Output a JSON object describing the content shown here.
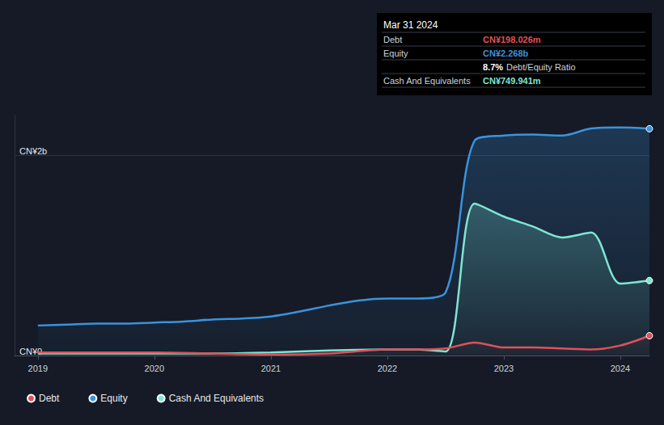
{
  "chart_data": {
    "type": "line",
    "xlim": [
      2018.8,
      2024.25
    ],
    "xticks": [
      2019,
      2020,
      2021,
      2022,
      2023,
      2024
    ],
    "ylim": [
      0,
      2.4
    ],
    "yticks": [
      {
        "value": 0,
        "label": "CN¥0"
      },
      {
        "value": 2,
        "label": "CN¥2b"
      }
    ],
    "grid": true,
    "legend": "bottom left",
    "series": [
      {
        "name": "Debt",
        "color": "#e0505a",
        "x": [
          2019,
          2019.5,
          2020,
          2020.5,
          2021,
          2021.5,
          2022,
          2022.25,
          2022.5,
          2022.75,
          2023,
          2023.25,
          2023.5,
          2023.75,
          2024,
          2024.25
        ],
        "values": [
          0.03,
          0.03,
          0.03,
          0.02,
          0.01,
          0.02,
          0.06,
          0.06,
          0.07,
          0.13,
          0.08,
          0.08,
          0.07,
          0.06,
          0.1,
          0.198
        ]
      },
      {
        "name": "Equity",
        "color": "#3a93dd",
        "x": [
          2019,
          2019.25,
          2019.5,
          2019.75,
          2020,
          2020.25,
          2020.5,
          2020.75,
          2021,
          2021.25,
          2021.5,
          2021.75,
          2022,
          2022.25,
          2022.5,
          2022.75,
          2023,
          2023.25,
          2023.5,
          2023.75,
          2024,
          2024.25
        ],
        "values": [
          0.3,
          0.31,
          0.32,
          0.32,
          0.33,
          0.34,
          0.36,
          0.37,
          0.39,
          0.44,
          0.5,
          0.55,
          0.57,
          0.57,
          0.63,
          2.15,
          2.2,
          2.21,
          2.2,
          2.27,
          2.28,
          2.268
        ]
      },
      {
        "name": "Cash And Equivalents",
        "color": "#7ee6d3",
        "x": [
          2019,
          2019.5,
          2020,
          2020.5,
          2021,
          2021.5,
          2022,
          2022.25,
          2022.5,
          2022.75,
          2023,
          2023.25,
          2023.5,
          2023.75,
          2024,
          2024.25
        ],
        "values": [
          0.02,
          0.02,
          0.02,
          0.02,
          0.03,
          0.05,
          0.06,
          0.06,
          0.04,
          1.52,
          1.39,
          1.29,
          1.18,
          1.23,
          0.72,
          0.75
        ]
      }
    ],
    "annotations": {
      "date": "Mar 31 2024",
      "rows": [
        {
          "label": "Debt",
          "value": "CN¥198.026m",
          "color": "#e0505a"
        },
        {
          "label": "Equity",
          "value": "CN¥2.268b",
          "color": "#3a93dd"
        },
        {
          "value": "8.7%",
          "suffix": "Debt/Equity Ratio",
          "color": "#ffffff"
        },
        {
          "label": "Cash And Equivalents",
          "value": "CN¥749.941m",
          "color": "#7ee6d3"
        }
      ]
    }
  }
}
